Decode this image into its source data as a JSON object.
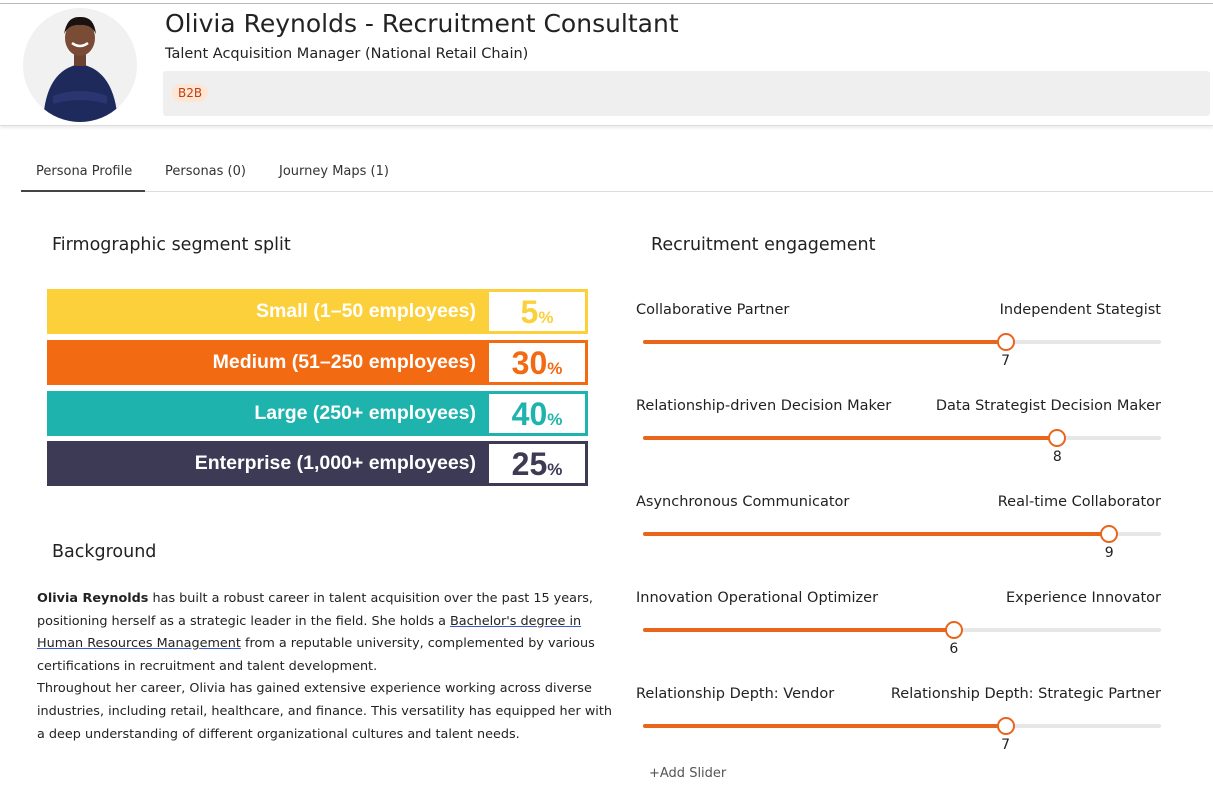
{
  "header": {
    "name": "Olivia Reynolds - Recruitment Consultant",
    "role": "Talent Acquisition Manager (National Retail Chain)",
    "tags": [
      "B2B"
    ]
  },
  "tabs": [
    "Persona Profile",
    "Personas (0)",
    "Journey Maps (1)"
  ],
  "segments": {
    "title": "Firmographic segment split",
    "unit": "%",
    "items": [
      {
        "label": "Small (1–50 employees)",
        "value": 5,
        "color": "#fcd03a"
      },
      {
        "label": "Medium (51–250 employees)",
        "value": 30,
        "color": "#f26a12"
      },
      {
        "label": "Large (250+ employees)",
        "value": 40,
        "color": "#1fb3ae"
      },
      {
        "label": "Enterprise (1,000+ employees)",
        "value": 25,
        "color": "#3d3a55"
      }
    ]
  },
  "background": {
    "title": "Background",
    "paragraphs": [
      [
        {
          "bold": "Olivia Reynolds"
        },
        {
          "text": " has built a robust career in talent acquisition over the past 15 years, positioning herself as a strategic leader in the field. She holds a "
        },
        {
          "link": "Bachelor's degree in Human Resources Management"
        },
        {
          "text": " from a reputable university, complemented by various certifications in recruitment and talent development."
        }
      ],
      [
        {
          "text": "Throughout her career, Olivia has gained extensive experience working across diverse industries, including retail, healthcare, and finance. This versatility has equipped her with a deep understanding of different organizational cultures and talent needs."
        }
      ]
    ]
  },
  "engagement": {
    "title": "Recruitment engagement",
    "range": [
      0,
      10
    ],
    "sliders": [
      {
        "left": "Collaborative Partner",
        "right": "Independent Stategist",
        "value": 7
      },
      {
        "left": "Relationship-driven Decision Maker",
        "right": "Data Strategist Decision Maker",
        "value": 8
      },
      {
        "left": "Asynchronous Communicator",
        "right": "Real-time Collaborator",
        "value": 9
      },
      {
        "left": "Innovation Operational Optimizer",
        "right": "Experience Innovator",
        "value": 6
      },
      {
        "left": "Relationship Depth: Vendor",
        "right": "Relationship Depth: Strategic Partner",
        "value": 7
      }
    ],
    "add": "+Add Slider"
  }
}
